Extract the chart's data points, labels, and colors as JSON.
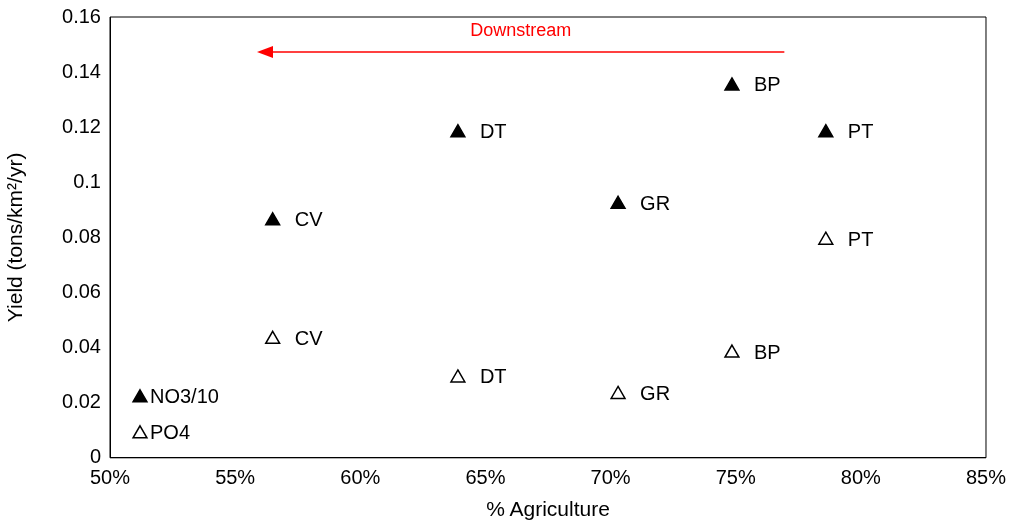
{
  "chart_data": {
    "type": "scatter",
    "xlabel": "% Agriculture",
    "ylabel": "Yield (tons/km²/yr)",
    "series": [
      {
        "name": "NO3/10",
        "color": "#000000",
        "x": [
          56.5,
          63.9,
          70.3,
          74.85,
          78.6
        ],
        "values": [
          0.086,
          0.118,
          0.092,
          0.135,
          0.118
        ]
      },
      {
        "name": "PO4",
        "color": "#000000",
        "x": [
          56.5,
          63.9,
          70.3,
          74.85,
          78.6
        ],
        "values": [
          0.043,
          0.029,
          0.023,
          0.038,
          0.079
        ]
      }
    ],
    "xlim": [
      50,
      85
    ],
    "xticks": [
      {
        "value": 50,
        "label": "50%"
      },
      {
        "value": 55,
        "label": "55%"
      },
      {
        "value": 60,
        "label": "60%"
      },
      {
        "value": 65,
        "label": "65%"
      },
      {
        "value": 70,
        "label": "70%"
      },
      {
        "value": 75,
        "label": "75%"
      },
      {
        "value": 80,
        "label": "80%"
      },
      {
        "value": 85,
        "label": "85%"
      }
    ],
    "ylim": [
      0,
      0.16
    ],
    "yticks": [
      0,
      0.02,
      0.04,
      0.06,
      0.08,
      0.1,
      0.12,
      0.14,
      0.16
    ],
    "marker": "triangle",
    "grid": false,
    "legend": "bottom left",
    "annotations": [
      "Downstream",
      {
        "text": "CV",
        "x": 56.5,
        "y": 0.086
      },
      {
        "text": "DT",
        "x": 63.9,
        "y": 0.118
      },
      {
        "text": "GR",
        "x": 70.3,
        "y": 0.092
      },
      {
        "text": "BP",
        "x": 74.85,
        "y": 0.135
      },
      {
        "text": "PT",
        "x": 78.6,
        "y": 0.118
      },
      {
        "text": "CV",
        "x": 56.5,
        "y": 0.043
      },
      {
        "text": "DT",
        "x": 63.9,
        "y": 0.029
      },
      {
        "text": "GR",
        "x": 70.3,
        "y": 0.023
      },
      {
        "text": "BP",
        "x": 74.85,
        "y": 0.038
      },
      {
        "text": "PT",
        "x": 78.6,
        "y": 0.079
      }
    ]
  }
}
